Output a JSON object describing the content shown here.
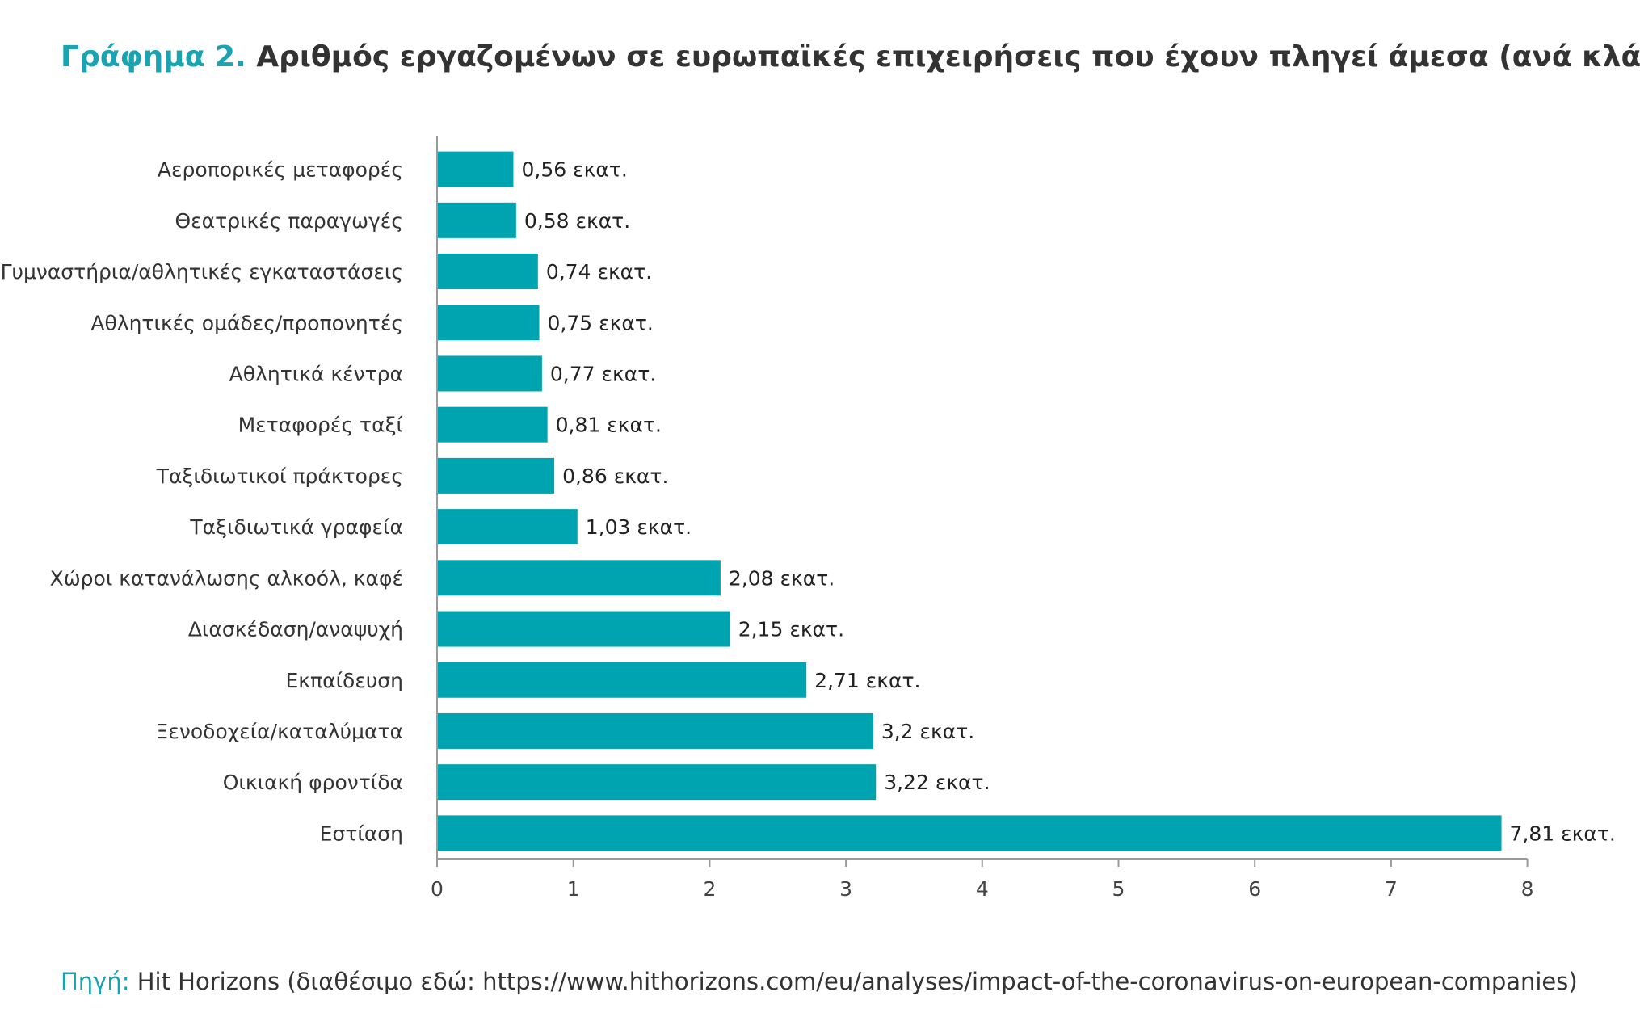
{
  "title": {
    "lead": "Γράφημα 2.",
    "text": "Αριθμός εργαζομένων σε ευρωπαϊκές επιχειρήσεις που έχουν πληγεί άμεσα (ανά κλάδο)"
  },
  "source": {
    "lead": "Πηγή:",
    "text": "Hit Horizons (διαθέσιμο εδώ: https://www.hithorizons.com/eu/analyses/impact-of-the-coronavirus-on-european-companies)"
  },
  "colors": {
    "bar": "#00a3b0",
    "accent": "#1aa3b1",
    "axis": "#9a9a9a"
  },
  "chart_data": {
    "type": "bar",
    "orientation": "horizontal",
    "categories": [
      "Αεροπορικές μεταφορές",
      "Θεατρικές παραγωγές",
      "Γυμναστήρια/αθλητικές εγκαταστάσεις",
      "Αθλητικές ομάδες/προπονητές",
      "Αθλητικά κέντρα",
      "Μεταφορές ταξί",
      "Ταξιδιωτικοί πράκτορες",
      "Ταξιδιωτικά γραφεία",
      "Χώροι κατανάλωσης αλκοόλ, καφέ",
      "Διασκέδαση/αναψυχή",
      "Εκπαίδευση",
      "Ξενοδοχεία/καταλύματα",
      "Οικιακή φροντίδα",
      "Εστίαση"
    ],
    "values": [
      0.56,
      0.58,
      0.74,
      0.75,
      0.77,
      0.81,
      0.86,
      1.03,
      2.08,
      2.15,
      2.71,
      3.2,
      3.22,
      7.81
    ],
    "data_labels": [
      "0,56 εκατ.",
      "0,58 εκατ.",
      "0,74 εκατ.",
      "0,75 εκατ.",
      "0,77 εκατ.",
      "0,81 εκατ.",
      "0,86 εκατ.",
      "1,03 εκατ.",
      "2,08 εκατ.",
      "2,15 εκατ.",
      "2,71 εκατ.",
      "3,2 εκατ.",
      "3,22 εκατ.",
      "7,81 εκατ."
    ],
    "xticks": [
      "0",
      "1",
      "2",
      "3",
      "4",
      "5",
      "6",
      "7",
      "8"
    ],
    "xlim": [
      0,
      8
    ],
    "grid": false
  }
}
